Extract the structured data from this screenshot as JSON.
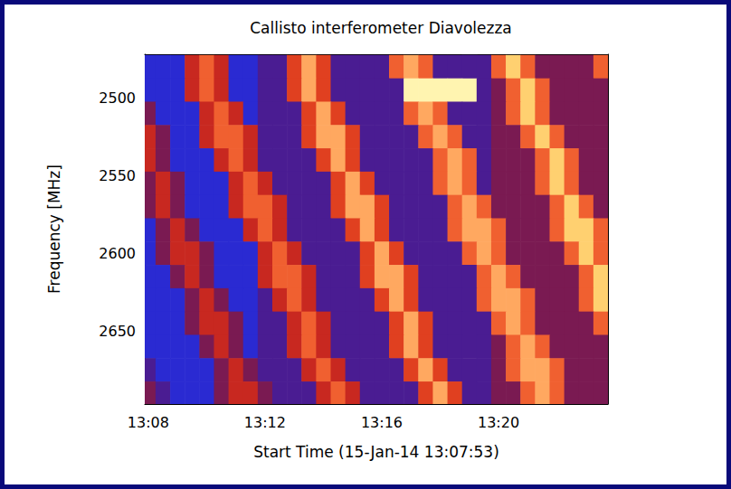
{
  "chart_data": {
    "type": "heatmap",
    "title": "Callisto interferometer Diavolezza",
    "x_label": "Start Time (15-Jan-14 13:07:53)",
    "y_label": "Frequency [MHz]",
    "x": [
      8,
      8.5,
      9,
      9.5,
      10,
      10.5,
      11,
      11.5,
      12,
      12.5,
      13,
      13.5,
      14,
      14.5,
      15,
      15.5,
      16,
      16.5,
      17,
      17.5,
      18,
      18.5,
      19,
      19.5,
      20,
      20.5,
      21,
      21.5,
      22,
      22.5,
      23,
      23.5
    ],
    "y": [
      2480,
      2495,
      2510,
      2525,
      2540,
      2555,
      2570,
      2585,
      2600,
      2615,
      2630,
      2645,
      2660,
      2675,
      2690
    ],
    "z": [
      [
        1,
        1,
        1,
        4,
        6,
        4,
        1,
        1,
        2,
        2,
        5,
        8,
        5,
        2,
        2,
        2,
        2,
        6,
        8,
        6,
        2,
        2,
        2,
        2,
        6,
        9,
        6,
        3,
        3,
        3,
        3,
        6
      ],
      [
        1,
        1,
        1,
        4,
        6,
        4,
        1,
        1,
        2,
        2,
        5,
        8,
        5,
        2,
        2,
        2,
        2,
        2,
        10,
        10,
        10,
        10,
        10,
        2,
        3,
        6,
        9,
        6,
        3,
        3,
        3,
        3
      ],
      [
        3,
        1,
        1,
        1,
        4,
        6,
        4,
        1,
        2,
        2,
        2,
        5,
        8,
        5,
        2,
        2,
        2,
        2,
        6,
        8,
        6,
        2,
        2,
        2,
        3,
        6,
        9,
        6,
        3,
        3,
        3,
        3
      ],
      [
        4,
        3,
        1,
        1,
        4,
        6,
        6,
        4,
        2,
        2,
        2,
        5,
        8,
        8,
        5,
        2,
        2,
        2,
        2,
        6,
        8,
        6,
        2,
        2,
        3,
        3,
        6,
        9,
        6,
        3,
        3,
        3
      ],
      [
        4,
        3,
        1,
        1,
        1,
        4,
        6,
        4,
        2,
        2,
        2,
        2,
        5,
        8,
        5,
        2,
        2,
        2,
        2,
        2,
        6,
        8,
        6,
        2,
        3,
        3,
        3,
        6,
        9,
        6,
        3,
        3
      ],
      [
        3,
        4,
        3,
        1,
        1,
        1,
        4,
        6,
        4,
        2,
        2,
        2,
        2,
        5,
        8,
        5,
        2,
        2,
        2,
        2,
        6,
        8,
        6,
        2,
        3,
        3,
        3,
        6,
        9,
        6,
        3,
        3
      ],
      [
        3,
        4,
        3,
        1,
        1,
        1,
        4,
        6,
        6,
        4,
        2,
        2,
        2,
        5,
        8,
        8,
        5,
        2,
        2,
        2,
        2,
        6,
        8,
        6,
        3,
        3,
        3,
        3,
        6,
        9,
        6,
        3
      ],
      [
        1,
        3,
        4,
        3,
        1,
        1,
        1,
        4,
        6,
        4,
        2,
        2,
        2,
        2,
        5,
        8,
        5,
        2,
        2,
        2,
        2,
        6,
        8,
        8,
        6,
        3,
        3,
        3,
        6,
        9,
        9,
        6
      ],
      [
        1,
        3,
        4,
        4,
        3,
        1,
        1,
        1,
        4,
        6,
        4,
        2,
        2,
        2,
        2,
        5,
        8,
        5,
        2,
        2,
        2,
        2,
        6,
        8,
        6,
        3,
        3,
        3,
        3,
        6,
        9,
        6
      ],
      [
        1,
        1,
        3,
        4,
        3,
        1,
        1,
        1,
        4,
        6,
        6,
        4,
        2,
        2,
        2,
        5,
        8,
        8,
        5,
        2,
        2,
        2,
        2,
        6,
        8,
        6,
        3,
        3,
        3,
        3,
        6,
        9
      ],
      [
        1,
        1,
        1,
        3,
        4,
        3,
        1,
        1,
        2,
        4,
        6,
        4,
        2,
        2,
        2,
        2,
        5,
        8,
        5,
        2,
        2,
        2,
        2,
        6,
        8,
        8,
        6,
        3,
        3,
        3,
        6,
        9
      ],
      [
        1,
        1,
        1,
        3,
        4,
        4,
        3,
        1,
        2,
        2,
        4,
        6,
        4,
        2,
        2,
        2,
        2,
        5,
        8,
        5,
        2,
        2,
        2,
        2,
        6,
        8,
        6,
        3,
        3,
        3,
        3,
        6
      ],
      [
        1,
        1,
        1,
        1,
        3,
        4,
        3,
        1,
        2,
        2,
        4,
        6,
        4,
        2,
        2,
        2,
        2,
        5,
        8,
        5,
        2,
        2,
        2,
        2,
        3,
        6,
        8,
        6,
        3,
        3,
        3,
        3
      ],
      [
        2,
        1,
        1,
        1,
        1,
        3,
        4,
        3,
        2,
        2,
        2,
        4,
        6,
        4,
        2,
        2,
        2,
        2,
        5,
        8,
        5,
        2,
        2,
        2,
        3,
        6,
        8,
        8,
        6,
        3,
        3,
        3
      ],
      [
        3,
        2,
        1,
        1,
        1,
        3,
        4,
        4,
        3,
        2,
        2,
        2,
        4,
        6,
        4,
        2,
        2,
        2,
        2,
        5,
        8,
        5,
        2,
        2,
        3,
        3,
        6,
        8,
        6,
        3,
        3,
        3
      ]
    ],
    "zlim": [
      0,
      10
    ],
    "xlim": [
      7.88,
      23.75
    ],
    "xticks": [
      {
        "value": 8,
        "label": "13:08"
      },
      {
        "value": 12,
        "label": "13:12"
      },
      {
        "value": 16,
        "label": "13:16"
      },
      {
        "value": 20,
        "label": "13:20"
      }
    ],
    "ylim": [
      2697,
      2472
    ],
    "yticks": [
      2500,
      2550,
      2600,
      2650
    ],
    "grid": false
  }
}
